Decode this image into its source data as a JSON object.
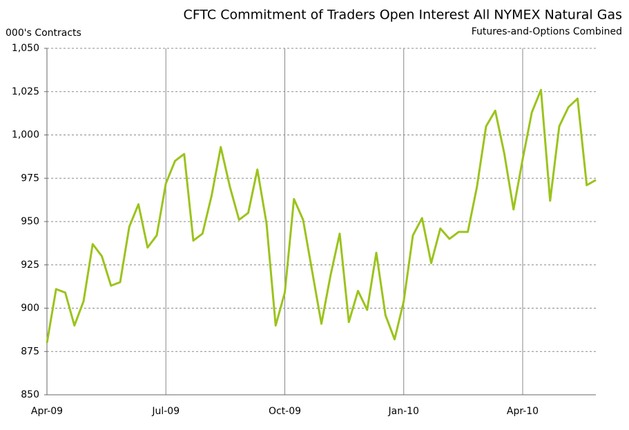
{
  "chart_data": {
    "type": "line",
    "title": "CFTC Commitment of Traders Open Interest All NYMEX Natural Gas",
    "subtitle": "Futures-and-Options Combined",
    "y_label": "000's Contracts",
    "categories": [
      "Apr-09",
      null,
      null,
      null,
      null,
      null,
      null,
      null,
      null,
      null,
      null,
      null,
      null,
      "Jul-09",
      null,
      null,
      null,
      null,
      null,
      null,
      null,
      null,
      null,
      null,
      null,
      null,
      "Oct-09",
      null,
      null,
      null,
      null,
      null,
      null,
      null,
      null,
      null,
      null,
      null,
      null,
      "Jan-10",
      null,
      null,
      null,
      null,
      null,
      null,
      null,
      null,
      null,
      null,
      null,
      null,
      "Apr-10",
      null,
      null,
      null,
      null,
      null,
      null,
      null,
      null
    ],
    "series": [
      {
        "name": "Open Interest",
        "color": "#9bc31c",
        "values": [
          880,
          911,
          909,
          890,
          904,
          937,
          930,
          913,
          915,
          947,
          960,
          935,
          942,
          972,
          985,
          989,
          939,
          943,
          965,
          993,
          970,
          951,
          955,
          980,
          949,
          890,
          909,
          963,
          951,
          921,
          891,
          919,
          943,
          892,
          910,
          899,
          932,
          896,
          882,
          904,
          942,
          952,
          926,
          946,
          940,
          944,
          944,
          970,
          1005,
          1014,
          989,
          957,
          986,
          1013,
          1026,
          962,
          1005,
          1016,
          1021,
          971,
          974
        ]
      }
    ],
    "ylim": [
      850,
      1050
    ],
    "yticks": [
      850,
      875,
      900,
      925,
      950,
      975,
      {
        "value": 1000,
        "label": "1,000"
      },
      {
        "value": 1025,
        "label": "1,025"
      },
      {
        "value": 1050,
        "label": "1,050"
      }
    ],
    "grid": true
  }
}
